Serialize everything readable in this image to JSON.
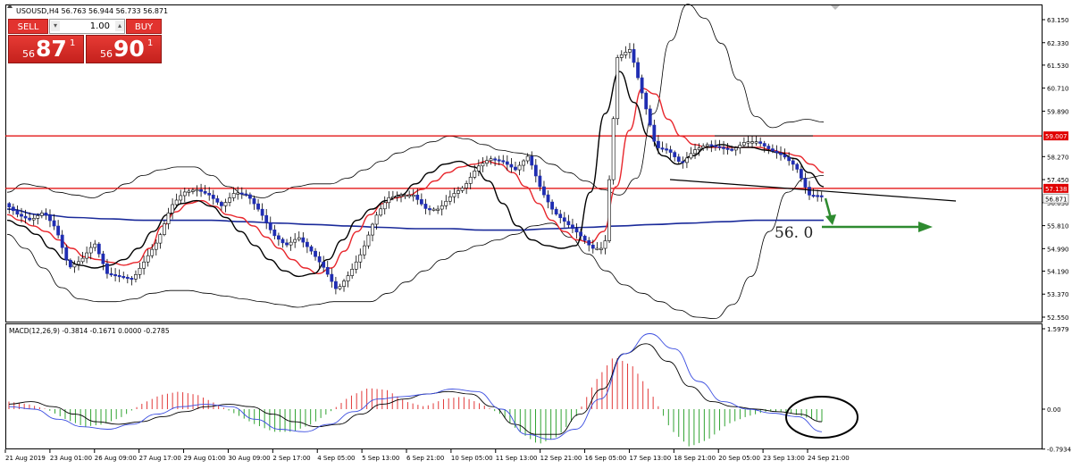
{
  "header": {
    "symbol_text": "USOUSD,H4 56.763 56.944 56.733 56.871"
  },
  "trade_panel": {
    "sell_label": "SELL",
    "buy_label": "BUY",
    "lot_value": "1.00",
    "down_icon": "chevron-down-icon",
    "up_icon": "chevron-up-icon",
    "sell_price_small": "56",
    "sell_price_big": "87",
    "sell_price_sup": "1",
    "buy_price_small": "56",
    "buy_price_big": "90",
    "buy_price_sup": "1"
  },
  "colors": {
    "bull": "#ffffff",
    "bear": "#1f2db2",
    "ma_red": "#e8262c",
    "ma_black": "#000000",
    "ma_blue": "#1a2a9a",
    "hline": "#e00000",
    "arrow": "#2e8b30",
    "macd_up": "#e23a3a",
    "macd_down": "#31a332",
    "signal": "#3b4de0"
  },
  "chart_data": [
    {
      "type": "candlestick",
      "symbol": "USOUSD",
      "timeframe": "H4",
      "ylim": [
        52.55,
        63.5
      ],
      "y_ticks": [
        "63.150",
        "62.330",
        "61.530",
        "60.710",
        "59.890",
        "59.007",
        "58.270",
        "57.450",
        "57.138",
        "56.871",
        "56.630",
        "55.810",
        "54.990",
        "54.190",
        "53.370",
        "52.550"
      ],
      "x_ticks": [
        "21 Aug 2019",
        "23 Aug 01:00",
        "26 Aug 09:00",
        "27 Aug 17:00",
        "29 Aug 01:00",
        "30 Aug 09:00",
        "2 Sep 17:00",
        "4 Sep 05:00",
        "5 Sep 13:00",
        "6 Sep 21:00",
        "10 Sep 05:00",
        "11 Sep 13:00",
        "12 Sep 21:00",
        "16 Sep 05:00",
        "17 Sep 13:00",
        "18 Sep 21:00",
        "20 Sep 05:00",
        "23 Sep 13:00",
        "24 Sep 21:00"
      ],
      "close_path": [
        56.6,
        56.2,
        56.0,
        56.3,
        55.7,
        54.3,
        54.6,
        55.2,
        54.1,
        54.0,
        53.9,
        54.6,
        55.3,
        56.5,
        57.0,
        57.1,
        56.9,
        56.5,
        57.0,
        56.9,
        56.3,
        55.5,
        55.1,
        55.4,
        54.9,
        54.3,
        53.5,
        54.1,
        54.9,
        56.1,
        56.8,
        56.9,
        56.9,
        56.4,
        56.4,
        56.9,
        57.2,
        57.9,
        58.2,
        58.1,
        57.8,
        58.3,
        57.1,
        56.3,
        55.9,
        55.5,
        55.0,
        55.0,
        61.8,
        62.1,
        60.4,
        58.6,
        58.5,
        58.0,
        58.5,
        58.7,
        58.6,
        58.5,
        58.8,
        58.8,
        58.5,
        58.3,
        57.9,
        56.9,
        56.87
      ],
      "ma_red": [
        56.2,
        56.0,
        55.8,
        55.6,
        55.3,
        55.0,
        54.7,
        54.6,
        54.5,
        54.4,
        54.5,
        55.0,
        55.8,
        56.3,
        56.6,
        56.7,
        56.5,
        56.2,
        56.1,
        55.8,
        55.4,
        55.0,
        54.6,
        54.3,
        54.1,
        54.3,
        54.9,
        55.6,
        56.2,
        56.6,
        56.8,
        56.9,
        57.1,
        57.4,
        57.7,
        57.9,
        58.0,
        58.1,
        58.0,
        57.7,
        57.2,
        56.6,
        56.0,
        55.6,
        55.3,
        55.2,
        55.6,
        57.2,
        59.2,
        60.7,
        60.5,
        59.6,
        59.0,
        58.7,
        58.6,
        58.6,
        58.6,
        58.6,
        58.6,
        58.5,
        58.4,
        58.3,
        58.0,
        57.7
      ],
      "ma_black": [
        56.0,
        55.8,
        55.5,
        55.0,
        54.6,
        54.4,
        54.3,
        54.4,
        54.6,
        55.0,
        55.6,
        56.2,
        56.6,
        56.7,
        56.5,
        56.1,
        55.6,
        55.1,
        54.6,
        54.2,
        54.0,
        54.1,
        54.6,
        55.3,
        56.0,
        56.4,
        56.7,
        56.9,
        57.3,
        57.7,
        58.0,
        58.1,
        57.9,
        57.4,
        56.6,
        55.8,
        55.3,
        55.1,
        55.0,
        55.1,
        57.0,
        59.8,
        61.3,
        60.2,
        59.0,
        58.3,
        58.0,
        58.3,
        58.6,
        58.7,
        58.6,
        58.6,
        58.5,
        58.4,
        58.2,
        57.7,
        57.2
      ],
      "ma_blue": [
        56.4,
        56.2,
        56.1,
        56.05,
        56.0,
        56.0,
        56.0,
        55.95,
        55.9,
        55.85,
        55.8,
        55.75,
        55.7,
        55.7,
        55.65,
        55.65,
        55.7,
        55.75,
        55.8,
        55.85,
        55.9,
        55.95,
        56.0,
        56.0,
        56.0
      ],
      "bb_upper": [
        57.0,
        57.3,
        57.2,
        57.0,
        56.9,
        56.8,
        57.0,
        57.3,
        57.6,
        57.8,
        57.9,
        57.9,
        57.6,
        57.2,
        56.9,
        56.8,
        57.0,
        57.2,
        57.3,
        57.3,
        57.5,
        57.8,
        58.1,
        58.4,
        58.6,
        58.8,
        59.0,
        58.9,
        58.7,
        58.5,
        58.4,
        58.3,
        58.0,
        57.7,
        57.4,
        57.1,
        56.9,
        57.5,
        59.8,
        62.4,
        63.7,
        63.2,
        62.3,
        61.0,
        59.7,
        59.3,
        59.5,
        59.6,
        59.5
      ],
      "bb_lower": [
        55.5,
        55.0,
        54.3,
        53.6,
        53.2,
        53.1,
        53.1,
        53.2,
        53.4,
        53.5,
        53.5,
        53.4,
        53.3,
        53.2,
        53.1,
        53.0,
        52.9,
        53.0,
        53.1,
        53.1,
        53.1,
        53.4,
        53.8,
        54.2,
        54.6,
        54.9,
        55.1,
        55.3,
        55.5,
        55.8,
        55.9,
        55.4,
        54.8,
        54.2,
        53.7,
        53.4,
        53.1,
        52.8,
        52.55,
        52.5,
        53.0,
        54.0,
        55.6,
        57.0,
        57.5,
        57.6
      ],
      "horizontal_lines": [
        59.007,
        57.138
      ],
      "annotation_label": "56. 0",
      "axis_tags": [
        "59.007",
        "57.138",
        "56.871"
      ]
    },
    {
      "type": "macd",
      "label": "MACD(12,26,9) -0.3814 -0.1671 0.0000 -0.2785",
      "ylim": [
        -0.7934,
        1.5979
      ],
      "y_ticks": [
        "1.5979",
        "0.00",
        "-0.7934"
      ],
      "histogram": [
        0.15,
        0.1,
        0.0,
        -0.2,
        -0.35,
        -0.3,
        -0.15,
        0.1,
        0.28,
        0.35,
        0.28,
        0.1,
        -0.1,
        -0.3,
        -0.45,
        -0.45,
        -0.3,
        -0.05,
        0.25,
        0.42,
        0.38,
        0.15,
        0.05,
        0.2,
        0.25,
        0.1,
        -0.1,
        -0.45,
        -0.7,
        -0.55,
        -0.15,
        0.55,
        1.05,
        0.85,
        0.3,
        -0.4,
        -0.75,
        -0.6,
        -0.3,
        -0.15,
        -0.05,
        -0.05,
        -0.15,
        -0.25
      ],
      "macd_line": [
        0.05,
        0.0,
        -0.2,
        -0.35,
        -0.4,
        -0.3,
        -0.1,
        0.05,
        0.1,
        0.05,
        -0.2,
        -0.4,
        -0.45,
        -0.3,
        -0.05,
        0.2,
        0.25,
        0.3,
        0.4,
        0.35,
        0.0,
        -0.5,
        -0.6,
        -0.4,
        0.2,
        1.1,
        1.5,
        1.2,
        0.55,
        0.15,
        0.0,
        -0.08,
        -0.15,
        -0.45
      ],
      "signal_line": [
        0.1,
        0.15,
        0.05,
        -0.1,
        -0.25,
        -0.3,
        -0.25,
        -0.15,
        -0.05,
        0.05,
        0.1,
        0.05,
        -0.1,
        -0.25,
        -0.35,
        -0.3,
        -0.1,
        0.1,
        0.2,
        0.3,
        0.35,
        0.3,
        0.05,
        -0.3,
        -0.5,
        -0.5,
        -0.1,
        0.4,
        1.1,
        1.3,
        0.95,
        0.45,
        0.15,
        0.05,
        0.0,
        -0.05,
        -0.1,
        -0.25
      ]
    }
  ]
}
